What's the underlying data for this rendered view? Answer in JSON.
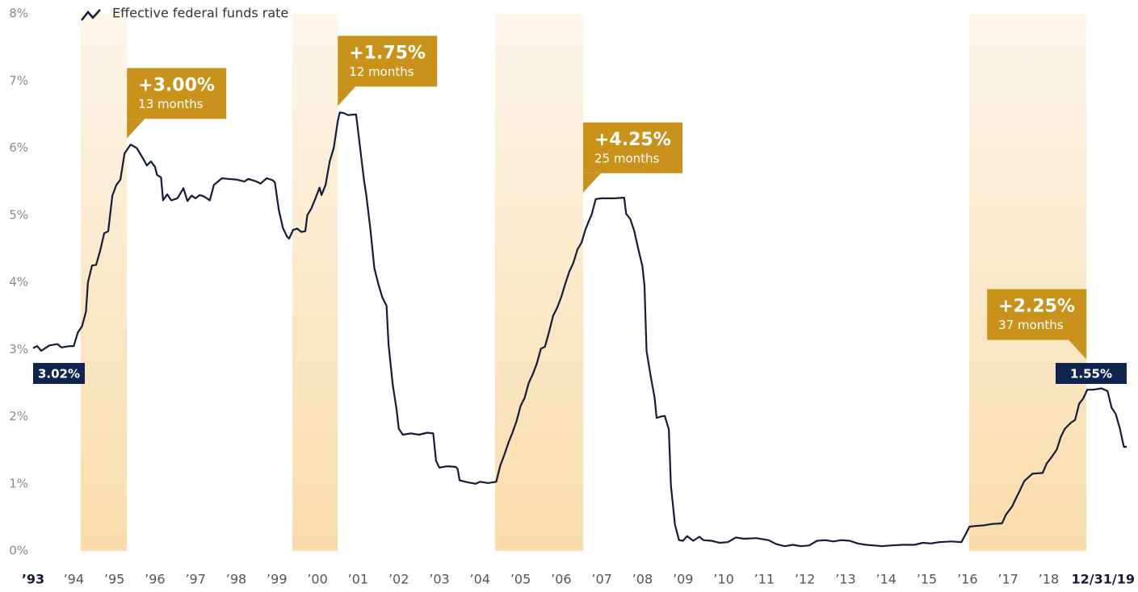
{
  "chart_data": {
    "type": "line",
    "x": [
      1993.0,
      1993.1,
      1993.2,
      1993.4,
      1993.6,
      1993.7,
      1993.9,
      1994.0,
      1994.1,
      1994.2,
      1994.3,
      1994.35,
      1994.45,
      1994.55,
      1994.65,
      1994.75,
      1994.85,
      1994.95,
      1995.05,
      1995.15,
      1995.25,
      1995.4,
      1995.55,
      1995.7,
      1995.8,
      1995.9,
      1996.0,
      1996.05,
      1996.15,
      1996.2,
      1996.3,
      1996.4,
      1996.55,
      1996.6,
      1996.7,
      1996.8,
      1996.9,
      1997.0,
      1997.1,
      1997.2,
      1997.35,
      1997.45,
      1997.55,
      1997.65,
      1997.8,
      1998.0,
      1998.2,
      1998.3,
      1998.5,
      1998.6,
      1998.75,
      1998.9,
      1998.95,
      1999.05,
      1999.15,
      1999.25,
      1999.3,
      1999.4,
      1999.5,
      1999.6,
      1999.7,
      1999.75,
      1999.85,
      1999.95,
      2000.05,
      2000.1,
      2000.2,
      2000.3,
      2000.4,
      2000.5,
      2000.55,
      2000.65,
      2000.75,
      2000.95,
      2001.05,
      2001.15,
      2001.2,
      2001.3,
      2001.4,
      2001.5,
      2001.6,
      2001.7,
      2001.75,
      2001.85,
      2001.95,
      2002.0,
      2002.1,
      2002.3,
      2002.5,
      2002.7,
      2002.85,
      2002.92,
      2003.0,
      2003.2,
      2003.4,
      2003.45,
      2003.5,
      2003.7,
      2003.9,
      2004.0,
      2004.2,
      2004.4,
      2004.5,
      2004.6,
      2004.7,
      2004.8,
      2004.9,
      2005.0,
      2005.1,
      2005.2,
      2005.3,
      2005.4,
      2005.5,
      2005.6,
      2005.7,
      2005.8,
      2005.9,
      2006.0,
      2006.1,
      2006.2,
      2006.3,
      2006.4,
      2006.5,
      2006.6,
      2006.7,
      2006.75,
      2006.85,
      2007.0,
      2007.3,
      2007.55,
      2007.6,
      2007.7,
      2007.8,
      2007.9,
      2008.0,
      2008.05,
      2008.1,
      2008.2,
      2008.3,
      2008.35,
      2008.45,
      2008.55,
      2008.65,
      2008.7,
      2008.8,
      2008.9,
      2009.0,
      2009.1,
      2009.25,
      2009.4,
      2009.5,
      2009.7,
      2009.9,
      2010.1,
      2010.3,
      2010.5,
      2010.8,
      2011.1,
      2011.3,
      2011.5,
      2011.7,
      2011.9,
      2012.1,
      2012.3,
      2012.5,
      2012.7,
      2012.9,
      2013.1,
      2013.3,
      2013.5,
      2013.7,
      2013.9,
      2014.1,
      2014.4,
      2014.7,
      2014.9,
      2015.1,
      2015.3,
      2015.6,
      2015.85,
      2015.95,
      2016.05,
      2016.2,
      2016.4,
      2016.6,
      2016.85,
      2016.95,
      2017.1,
      2017.2,
      2017.3,
      2017.4,
      2017.6,
      2017.85,
      2017.95,
      2018.1,
      2018.2,
      2018.3,
      2018.4,
      2018.55,
      2018.65,
      2018.75,
      2018.85,
      2018.95,
      2019.1,
      2019.3,
      2019.45,
      2019.55,
      2019.65,
      2019.75,
      2019.85,
      2019.92
    ],
    "series": [
      {
        "name": "Effective federal funds rate",
        "color": "#141c38",
        "values": [
          3.02,
          3.05,
          2.98,
          3.06,
          3.08,
          3.03,
          3.05,
          3.05,
          3.25,
          3.34,
          3.56,
          4.0,
          4.25,
          4.26,
          4.47,
          4.73,
          4.76,
          5.29,
          5.45,
          5.53,
          5.92,
          6.05,
          6.0,
          5.85,
          5.74,
          5.8,
          5.72,
          5.6,
          5.56,
          5.22,
          5.31,
          5.22,
          5.25,
          5.3,
          5.4,
          5.21,
          5.29,
          5.25,
          5.3,
          5.28,
          5.22,
          5.45,
          5.5,
          5.55,
          5.54,
          5.53,
          5.5,
          5.54,
          5.5,
          5.47,
          5.55,
          5.52,
          5.49,
          5.07,
          4.81,
          4.68,
          4.65,
          4.78,
          4.8,
          4.75,
          4.76,
          5.0,
          5.1,
          5.25,
          5.41,
          5.3,
          5.45,
          5.8,
          6.0,
          6.4,
          6.53,
          6.52,
          6.49,
          6.5,
          6.0,
          5.5,
          5.31,
          4.8,
          4.21,
          3.97,
          3.77,
          3.65,
          3.07,
          2.49,
          2.09,
          1.82,
          1.73,
          1.75,
          1.73,
          1.76,
          1.75,
          1.34,
          1.24,
          1.26,
          1.25,
          1.22,
          1.05,
          1.02,
          1.0,
          1.03,
          1.01,
          1.03,
          1.27,
          1.43,
          1.61,
          1.76,
          1.93,
          2.16,
          2.28,
          2.5,
          2.63,
          2.79,
          3.01,
          3.04,
          3.26,
          3.5,
          3.62,
          3.78,
          3.98,
          4.16,
          4.29,
          4.49,
          4.59,
          4.79,
          4.94,
          5.01,
          5.24,
          5.25,
          5.25,
          5.26,
          5.02,
          4.94,
          4.76,
          4.49,
          4.24,
          3.94,
          2.98,
          2.61,
          2.28,
          1.98,
          2.0,
          2.01,
          1.81,
          0.97,
          0.39,
          0.16,
          0.15,
          0.22,
          0.15,
          0.21,
          0.16,
          0.15,
          0.12,
          0.13,
          0.2,
          0.18,
          0.19,
          0.16,
          0.1,
          0.07,
          0.09,
          0.07,
          0.08,
          0.15,
          0.16,
          0.14,
          0.16,
          0.15,
          0.11,
          0.09,
          0.08,
          0.07,
          0.08,
          0.09,
          0.09,
          0.12,
          0.11,
          0.13,
          0.14,
          0.13,
          0.24,
          0.36,
          0.37,
          0.38,
          0.4,
          0.41,
          0.54,
          0.66,
          0.79,
          0.91,
          1.04,
          1.15,
          1.16,
          1.3,
          1.42,
          1.51,
          1.7,
          1.82,
          1.91,
          1.95,
          2.19,
          2.27,
          2.4,
          2.4,
          2.42,
          2.38,
          2.13,
          2.04,
          1.83,
          1.55,
          1.55
        ]
      }
    ],
    "xlim": [
      1993,
      2020
    ],
    "xticks": [
      {
        "value": 1993,
        "label": "’93"
      },
      {
        "value": 1994,
        "label": "’94"
      },
      {
        "value": 1995,
        "label": "’95"
      },
      {
        "value": 1996,
        "label": "’96"
      },
      {
        "value": 1997,
        "label": "’97"
      },
      {
        "value": 1998,
        "label": "’98"
      },
      {
        "value": 1999,
        "label": "’99"
      },
      {
        "value": 2000,
        "label": "’00"
      },
      {
        "value": 2001,
        "label": "’01"
      },
      {
        "value": 2002,
        "label": "’02"
      },
      {
        "value": 2003,
        "label": "’03"
      },
      {
        "value": 2004,
        "label": "’04"
      },
      {
        "value": 2005,
        "label": "’05"
      },
      {
        "value": 2006,
        "label": "’06"
      },
      {
        "value": 2007,
        "label": "’07"
      },
      {
        "value": 2008,
        "label": "’08"
      },
      {
        "value": 2009,
        "label": "’09"
      },
      {
        "value": 2010,
        "label": "’10"
      },
      {
        "value": 2011,
        "label": "’11"
      },
      {
        "value": 2012,
        "label": "’12"
      },
      {
        "value": 2013,
        "label": "’13"
      },
      {
        "value": 2014,
        "label": "’14"
      },
      {
        "value": 2015,
        "label": "’15"
      },
      {
        "value": 2016,
        "label": "’16"
      },
      {
        "value": 2017,
        "label": "’17"
      },
      {
        "value": 2018,
        "label": "’18"
      },
      {
        "value": 2020,
        "label": "12/31/19"
      }
    ],
    "ylim": [
      0,
      8
    ],
    "yticks": [
      {
        "value": 0,
        "label": "0%"
      },
      {
        "value": 1,
        "label": "1%"
      },
      {
        "value": 2,
        "label": "2%"
      },
      {
        "value": 3,
        "label": "3%"
      },
      {
        "value": 4,
        "label": "4%"
      },
      {
        "value": 5,
        "label": "5%"
      },
      {
        "value": 6,
        "label": "6%"
      },
      {
        "value": 7,
        "label": "7%"
      },
      {
        "value": 8,
        "label": "8%"
      }
    ],
    "grid": false,
    "periods": [
      {
        "start": 1994.17,
        "end": 1995.31,
        "label": "+3.00%",
        "sublabel": "13 months"
      },
      {
        "start": 1999.38,
        "end": 2000.5,
        "label": "+1.75%",
        "sublabel": "12 months"
      },
      {
        "start": 2004.37,
        "end": 2006.54,
        "label": "+4.25%",
        "sublabel": "25 months"
      },
      {
        "start": 2016.04,
        "end": 2018.93,
        "label": "+2.25%",
        "sublabel": "37 months"
      }
    ],
    "period_color": "#c8921b",
    "annotations": [
      {
        "x": 1993.0,
        "y": 3.02,
        "label": "3.02%"
      },
      {
        "x": 2019.92,
        "y": 1.55,
        "label": "1.55%"
      }
    ],
    "annotation_color": "#0f2550"
  }
}
